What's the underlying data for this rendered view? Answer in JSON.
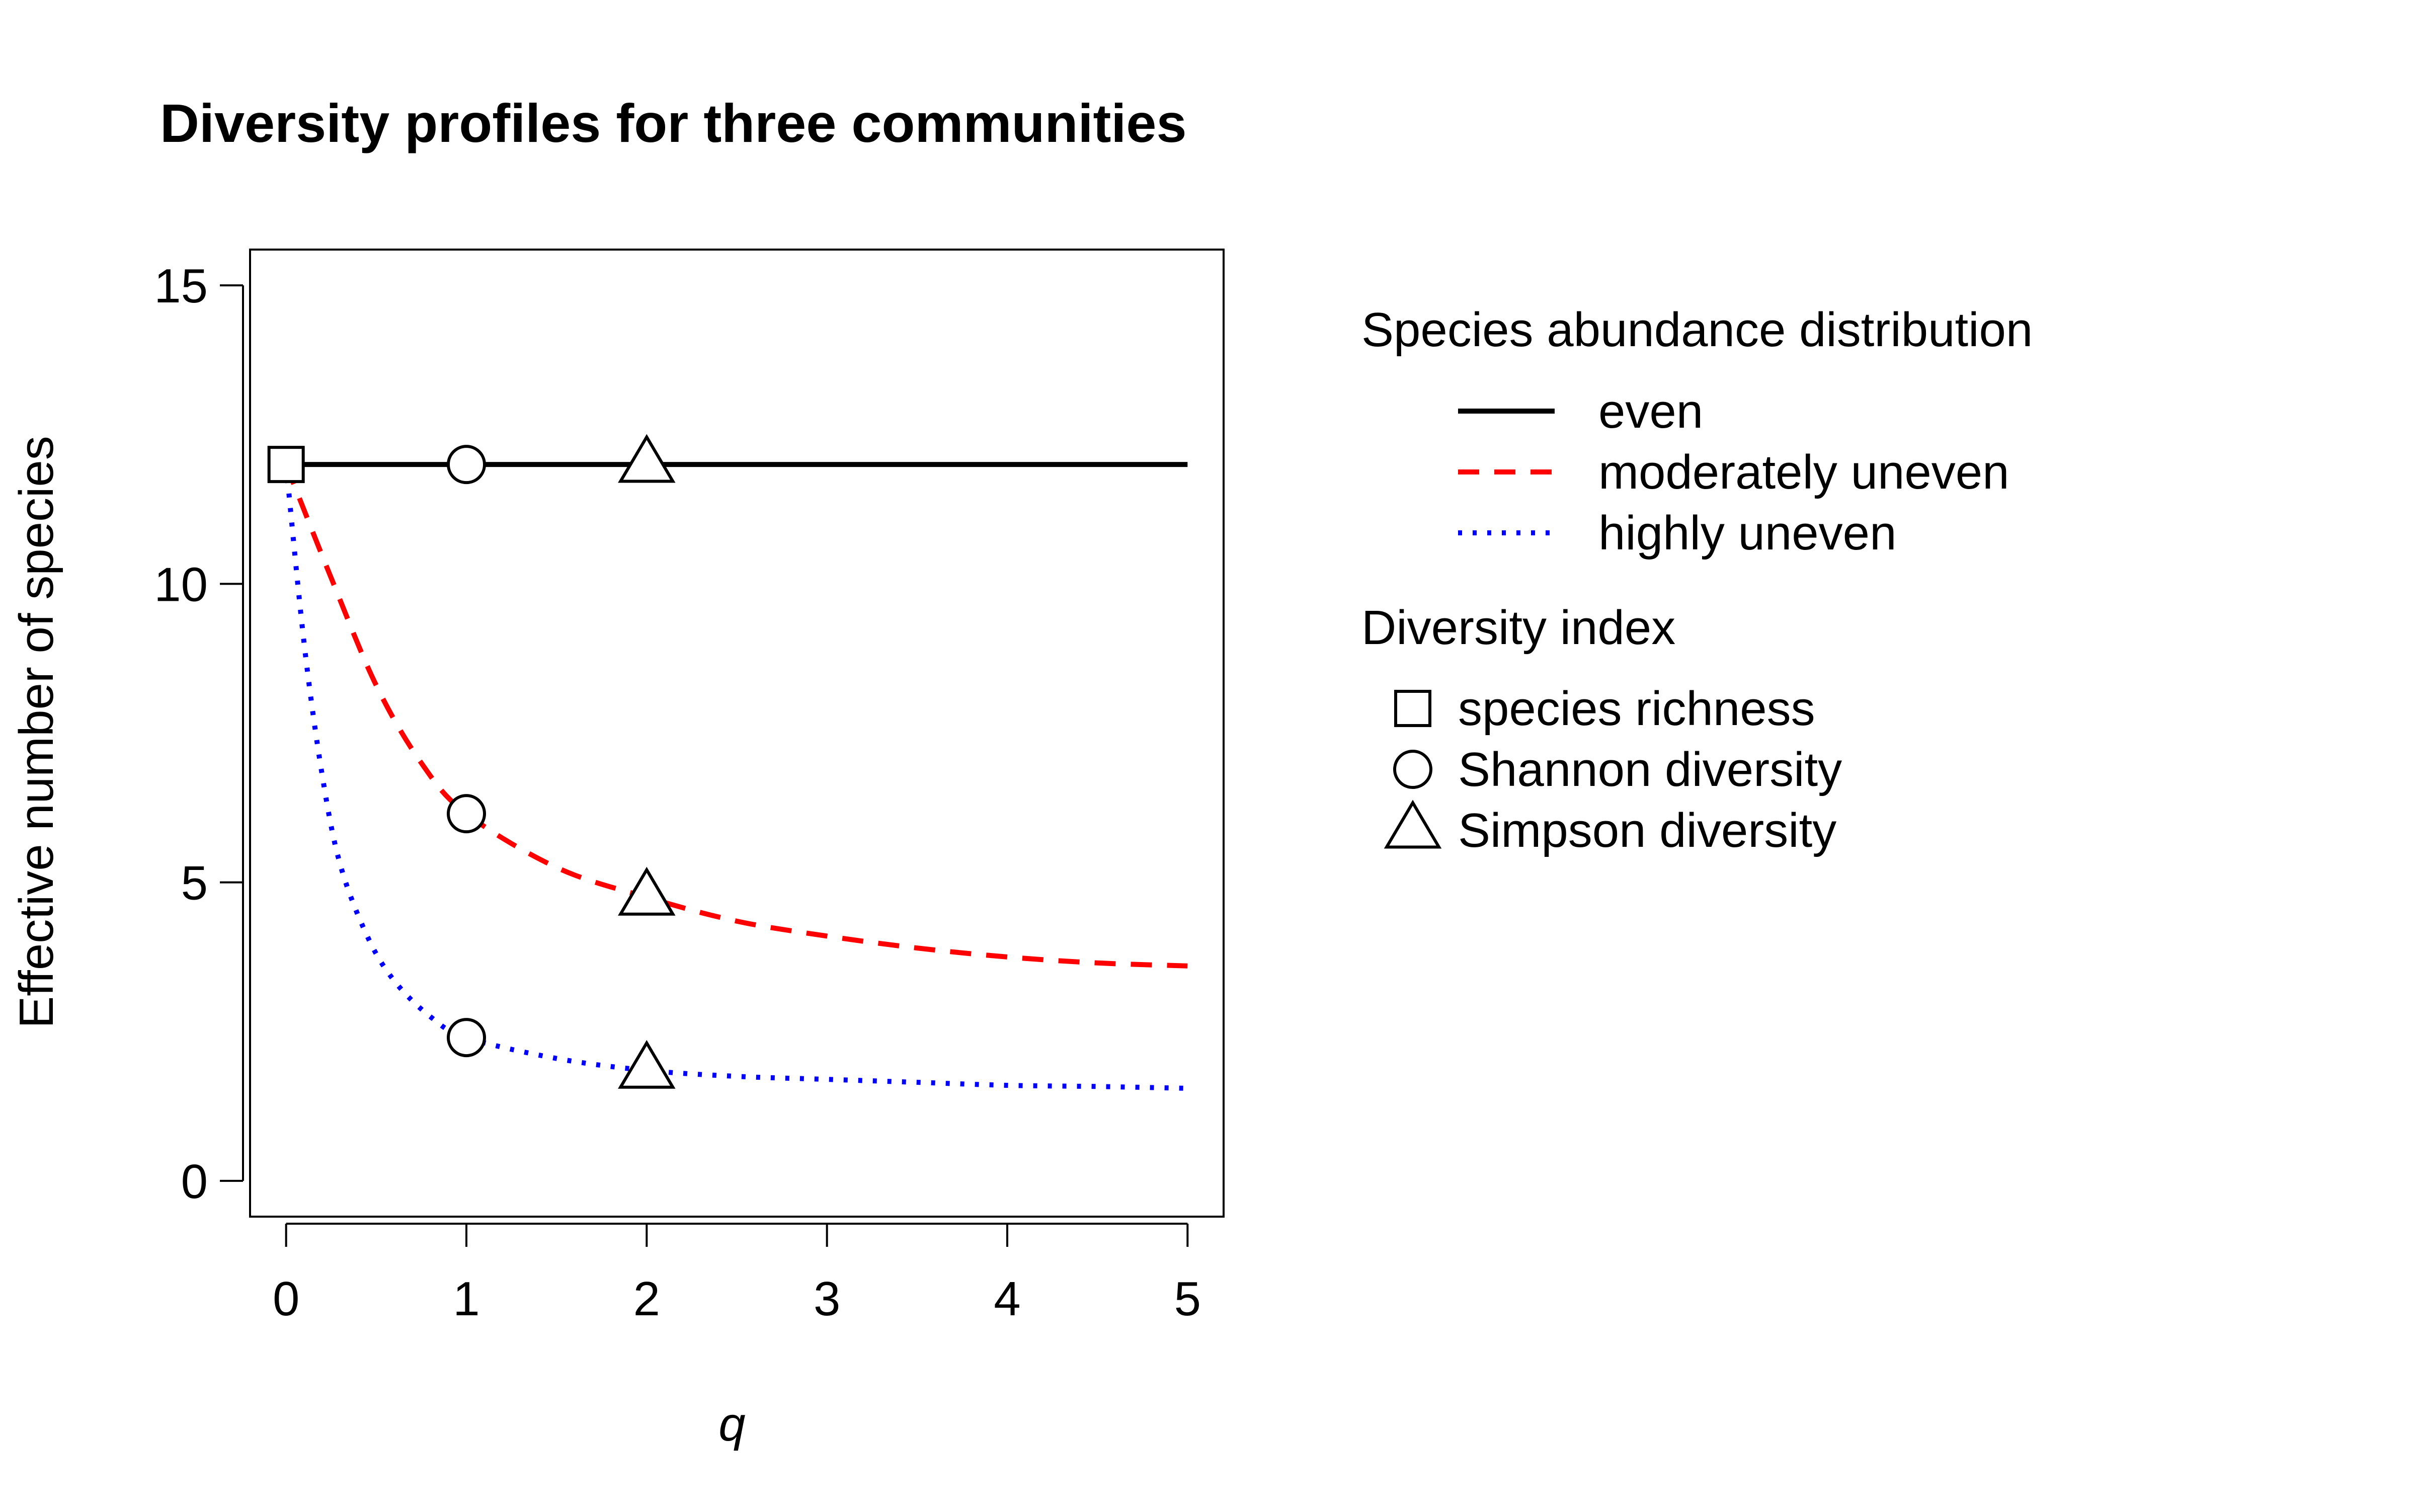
{
  "chart_data": {
    "type": "line",
    "title": "Diversity profiles for three communities",
    "xlabel": "q",
    "ylabel": "Effective number of species",
    "xlim": [
      -0.2,
      5.2
    ],
    "ylim": [
      -0.6,
      15.6
    ],
    "xticks": [
      0,
      1,
      2,
      3,
      4,
      5
    ],
    "yticks": [
      0,
      5,
      10,
      15
    ],
    "grid": false,
    "legend_position": "right",
    "series": [
      {
        "name": "even",
        "color": "#000000",
        "linestyle": "solid",
        "x": [
          0,
          0.25,
          0.5,
          0.75,
          1,
          1.5,
          2,
          2.5,
          3,
          3.5,
          4,
          4.5,
          5
        ],
        "y": [
          12,
          12,
          12,
          12,
          12,
          12,
          12,
          12,
          12,
          12,
          12,
          12,
          12
        ]
      },
      {
        "name": "moderately uneven",
        "color": "#ff0000",
        "linestyle": "dashed",
        "x": [
          0,
          0.25,
          0.5,
          0.75,
          1,
          1.5,
          2,
          2.5,
          3,
          3.5,
          4,
          4.5,
          5
        ],
        "y": [
          12,
          10.1,
          8.3,
          7.0,
          6.15,
          5.25,
          4.75,
          4.35,
          4.1,
          3.9,
          3.75,
          3.65,
          3.6
        ]
      },
      {
        "name": "highly uneven",
        "color": "#0000ff",
        "linestyle": "dotted",
        "x": [
          0,
          0.1,
          0.2,
          0.3,
          0.45,
          0.6,
          0.8,
          1,
          1.5,
          2,
          2.5,
          3,
          3.5,
          4,
          4.5,
          5
        ],
        "y": [
          12,
          9.0,
          6.8,
          5.3,
          4.1,
          3.35,
          2.75,
          2.4,
          2.05,
          1.85,
          1.75,
          1.7,
          1.65,
          1.6,
          1.58,
          1.55
        ]
      }
    ],
    "index_markers": [
      {
        "series": "even",
        "index": "species richness",
        "shape": "square",
        "x": 0,
        "y": 12
      },
      {
        "series": "even",
        "index": "Shannon diversity",
        "shape": "circle",
        "x": 1,
        "y": 12
      },
      {
        "series": "even",
        "index": "Simpson diversity",
        "shape": "triangle",
        "x": 2,
        "y": 12
      },
      {
        "series": "moderately uneven",
        "index": "Shannon diversity",
        "shape": "circle",
        "x": 1,
        "y": 6.15
      },
      {
        "series": "moderately uneven",
        "index": "Simpson diversity",
        "shape": "triangle",
        "x": 2,
        "y": 4.75
      },
      {
        "series": "highly uneven",
        "index": "Shannon diversity",
        "shape": "circle",
        "x": 1,
        "y": 2.4
      },
      {
        "series": "highly uneven",
        "index": "Simpson diversity",
        "shape": "triangle",
        "x": 2,
        "y": 1.85
      }
    ],
    "legend": {
      "lines_title": "Species abundance distribution",
      "lines": [
        {
          "label": "even",
          "color": "#000000",
          "linestyle": "solid"
        },
        {
          "label": "moderately uneven",
          "color": "#ff0000",
          "linestyle": "dashed"
        },
        {
          "label": "highly uneven",
          "color": "#0000ff",
          "linestyle": "dotted"
        }
      ],
      "markers_title": "Diversity index",
      "markers": [
        {
          "label": "species richness",
          "shape": "square"
        },
        {
          "label": "Shannon diversity",
          "shape": "circle"
        },
        {
          "label": "Simpson diversity",
          "shape": "triangle"
        }
      ]
    }
  }
}
